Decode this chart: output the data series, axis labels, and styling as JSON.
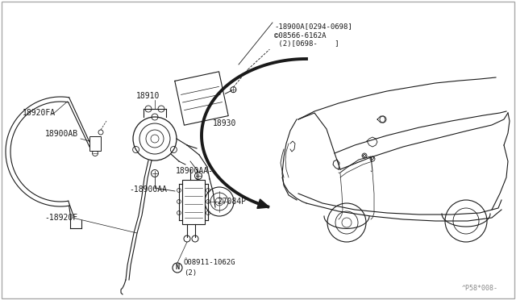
{
  "bg_color": "#ffffff",
  "line_color": "#1a1a1a",
  "figsize": [
    6.4,
    3.72
  ],
  "dpi": 100,
  "labels": {
    "18900A_line1": "-18900A[0294-0698]",
    "18900A_line2": "©08566-6162A",
    "18900A_line3": " (2)[0698-    ]",
    "18920FA": "18920FA",
    "18900AB": "18900AB",
    "18910": "18910",
    "18930": "18930",
    "18900AA_1": "-18900AA",
    "18900AA_2": "18900AA-",
    "18920F": "-18920F",
    "27084P": "-27084P",
    "bolt_label": "Ô08911-1062G",
    "bolt_n": "N",
    "bolt_2": "(2)",
    "ref": "^P58*008-"
  }
}
